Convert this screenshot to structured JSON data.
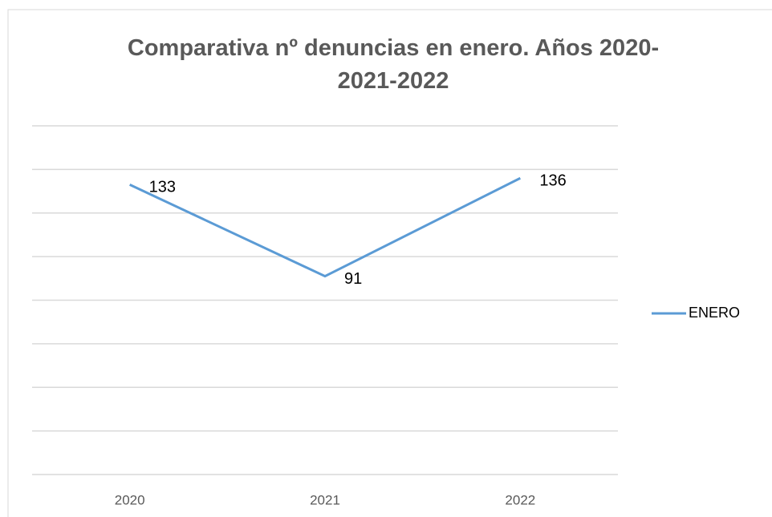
{
  "chart_data": {
    "type": "line",
    "title": "Comparativa nº denuncias en enero. Años 2020-2021-2022",
    "categories": [
      "2020",
      "2021",
      "2022"
    ],
    "series": [
      {
        "name": "ENERO",
        "color": "#5b9bd5",
        "values": [
          133,
          91,
          136
        ]
      }
    ],
    "ylim": [
      0,
      160
    ],
    "yticks": [
      0,
      20,
      40,
      60,
      80,
      100,
      120,
      140,
      160
    ],
    "grid": true,
    "legend": "right"
  }
}
